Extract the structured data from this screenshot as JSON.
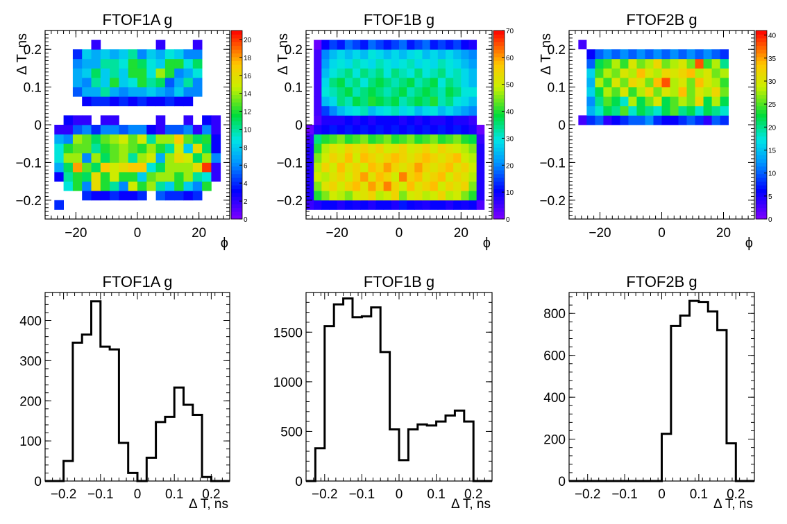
{
  "chart_data": [
    {
      "type": "heatmap",
      "title": "FTOF1A g",
      "xlabel": "ϕ",
      "ylabel": "Δ T, ns",
      "xlim": [
        -30,
        30
      ],
      "ylim": [
        -0.25,
        0.25
      ],
      "xticks": [
        -20,
        0,
        20
      ],
      "xtick_labels": [
        "−20",
        "0",
        "20"
      ],
      "yticks": [
        -0.2,
        -0.1,
        0,
        0.1,
        0.2
      ],
      "ytick_labels": [
        "−0.2",
        "−0.1",
        "0",
        "0.1",
        "0.2"
      ],
      "colorbar": {
        "min": 0,
        "max": 21,
        "ticks": [
          0,
          2,
          4,
          6,
          8,
          10,
          12,
          14,
          16,
          18,
          20
        ]
      },
      "x_bin_edges_start": -27,
      "x_bin_width": 3,
      "nx": 18,
      "y_bin_edges_start": -0.225,
      "y_bin_width": 0.025,
      "ny": 18,
      "z": [
        [
          4,
          0,
          0,
          0,
          0,
          0,
          0,
          0,
          0,
          0,
          0,
          0,
          0,
          0,
          0,
          0,
          0,
          0
        ],
        [
          0,
          0,
          0,
          4,
          3,
          3,
          4,
          3,
          3,
          4,
          0,
          5,
          4,
          4,
          3,
          4,
          0,
          0
        ],
        [
          0,
          9,
          12,
          6,
          16,
          12,
          10,
          6,
          15,
          12,
          14,
          10,
          8,
          12,
          8,
          6,
          12,
          0
        ],
        [
          3,
          10,
          12,
          11,
          16,
          12,
          15,
          12,
          12,
          8,
          13,
          14,
          14,
          12,
          14,
          10,
          9,
          2
        ],
        [
          7,
          11,
          18,
          13,
          11,
          17,
          15,
          16,
          17,
          17,
          9,
          11,
          14,
          14,
          14,
          16,
          20,
          2
        ],
        [
          9,
          14,
          14,
          6,
          14,
          11,
          13,
          14,
          10,
          14,
          15,
          7,
          14,
          16,
          15,
          11,
          14,
          6
        ],
        [
          9,
          12,
          13,
          13,
          10,
          12,
          13,
          14,
          13,
          12,
          14,
          12,
          10,
          15,
          8,
          16,
          11,
          3
        ],
        [
          7,
          6,
          14,
          13,
          11,
          13,
          14,
          15,
          13,
          15,
          10,
          14,
          14,
          17,
          13,
          11,
          12,
          3
        ],
        [
          2,
          2,
          5,
          6,
          4,
          6,
          6,
          5,
          6,
          6,
          3,
          2,
          5,
          5,
          6,
          2,
          6,
          2
        ],
        [
          0,
          3,
          2,
          2,
          0,
          2,
          2,
          0,
          0,
          0,
          0,
          2,
          0,
          0,
          2,
          0,
          3,
          2
        ],
        [
          0,
          0,
          0,
          0,
          0,
          0,
          0,
          0,
          0,
          0,
          0,
          0,
          0,
          0,
          0,
          0,
          0,
          0
        ],
        [
          0,
          0,
          0,
          3,
          4,
          4,
          3,
          4,
          3,
          4,
          3,
          3,
          4,
          3,
          3,
          0,
          0,
          0
        ],
        [
          0,
          0,
          5,
          7,
          7,
          10,
          7,
          6,
          7,
          7,
          8,
          7,
          6,
          8,
          6,
          6,
          0,
          0
        ],
        [
          0,
          0,
          7,
          6,
          10,
          8,
          12,
          8,
          9,
          12,
          10,
          11,
          5,
          7,
          10,
          6,
          0,
          0
        ],
        [
          0,
          0,
          7,
          8,
          11,
          8,
          10,
          8,
          12,
          12,
          9,
          14,
          12,
          6,
          7,
          9,
          0,
          0
        ],
        [
          0,
          0,
          6,
          7,
          7,
          10,
          10,
          9,
          12,
          11,
          9,
          8,
          12,
          12,
          9,
          11,
          0,
          0
        ],
        [
          0,
          0,
          4,
          8,
          7,
          8,
          7,
          8,
          10,
          6,
          8,
          7,
          9,
          8,
          6,
          6,
          0,
          0
        ],
        [
          0,
          0,
          0,
          0,
          2,
          0,
          0,
          0,
          0,
          0,
          0,
          2,
          0,
          0,
          0,
          2,
          0,
          0
        ]
      ]
    },
    {
      "type": "heatmap",
      "title": "FTOF1B g",
      "xlabel": "ϕ",
      "ylabel": "Δ T, ns",
      "xlim": [
        -30,
        30
      ],
      "ylim": [
        -0.25,
        0.25
      ],
      "xticks": [
        -20,
        0,
        20
      ],
      "xtick_labels": [
        "−20",
        "0",
        "20"
      ],
      "yticks": [
        -0.2,
        -0.1,
        0,
        0.1,
        0.2
      ],
      "ytick_labels": [
        "−0.2",
        "−0.1",
        "0",
        "0.1",
        "0.2"
      ],
      "colorbar": {
        "min": 0,
        "max": 70,
        "ticks": [
          0,
          10,
          20,
          30,
          40,
          50,
          60,
          70
        ]
      },
      "x_bin_edges_start": -30,
      "x_bin_width": 2.5,
      "nx": 24,
      "y_bin_edges_start": -0.225,
      "y_bin_width": 0.025,
      "ny": 19,
      "z": [
        [
          6,
          8,
          10,
          10,
          8,
          10,
          9,
          10,
          8,
          10,
          10,
          8,
          12,
          10,
          9,
          8,
          10,
          10,
          8,
          10,
          9,
          10,
          4,
          0
        ],
        [
          8,
          40,
          45,
          50,
          48,
          45,
          50,
          52,
          55,
          48,
          50,
          55,
          45,
          50,
          52,
          48,
          50,
          55,
          48,
          50,
          45,
          40,
          8,
          0
        ],
        [
          8,
          45,
          52,
          55,
          50,
          55,
          58,
          52,
          60,
          55,
          62,
          55,
          50,
          58,
          52,
          55,
          58,
          50,
          55,
          52,
          55,
          45,
          8,
          0
        ],
        [
          8,
          50,
          48,
          52,
          55,
          50,
          55,
          60,
          52,
          58,
          55,
          50,
          62,
          55,
          58,
          52,
          55,
          58,
          50,
          55,
          52,
          48,
          8,
          0
        ],
        [
          8,
          48,
          55,
          50,
          58,
          52,
          55,
          50,
          58,
          55,
          60,
          55,
          52,
          55,
          60,
          55,
          52,
          55,
          58,
          52,
          55,
          50,
          8,
          0
        ],
        [
          8,
          45,
          50,
          55,
          52,
          58,
          50,
          58,
          55,
          52,
          55,
          58,
          55,
          52,
          55,
          58,
          55,
          52,
          55,
          58,
          50,
          48,
          8,
          0
        ],
        [
          8,
          40,
          48,
          52,
          50,
          55,
          52,
          55,
          52,
          55,
          50,
          52,
          55,
          50,
          52,
          55,
          50,
          55,
          52,
          50,
          48,
          45,
          8,
          0
        ],
        [
          6,
          35,
          40,
          42,
          45,
          40,
          42,
          45,
          40,
          42,
          45,
          40,
          42,
          45,
          40,
          42,
          45,
          40,
          42,
          45,
          40,
          38,
          6,
          0
        ],
        [
          2,
          8,
          10,
          12,
          10,
          12,
          10,
          12,
          10,
          12,
          10,
          12,
          10,
          12,
          10,
          12,
          10,
          12,
          10,
          12,
          10,
          8,
          2,
          0
        ],
        [
          0,
          4,
          8,
          8,
          8,
          10,
          8,
          10,
          8,
          10,
          10,
          10,
          8,
          10,
          8,
          10,
          8,
          8,
          10,
          8,
          8,
          6,
          0,
          0
        ],
        [
          0,
          5,
          15,
          20,
          25,
          28,
          30,
          32,
          25,
          28,
          30,
          32,
          28,
          30,
          25,
          28,
          30,
          25,
          28,
          25,
          22,
          20,
          0,
          0
        ],
        [
          0,
          5,
          25,
          28,
          35,
          32,
          38,
          35,
          40,
          38,
          35,
          38,
          32,
          35,
          38,
          35,
          40,
          32,
          35,
          30,
          28,
          25,
          0,
          0
        ],
        [
          0,
          5,
          30,
          32,
          35,
          38,
          32,
          35,
          38,
          35,
          32,
          35,
          38,
          32,
          35,
          38,
          35,
          32,
          38,
          35,
          30,
          30,
          0,
          0
        ],
        [
          0,
          5,
          28,
          35,
          38,
          32,
          35,
          30,
          35,
          38,
          35,
          32,
          35,
          38,
          32,
          35,
          38,
          30,
          35,
          32,
          28,
          25,
          0,
          0
        ],
        [
          0,
          5,
          25,
          30,
          32,
          35,
          30,
          35,
          32,
          35,
          30,
          35,
          32,
          30,
          35,
          30,
          32,
          35,
          30,
          32,
          28,
          25,
          0,
          0
        ],
        [
          0,
          5,
          22,
          28,
          30,
          28,
          32,
          30,
          28,
          32,
          30,
          28,
          30,
          32,
          28,
          30,
          28,
          32,
          30,
          28,
          25,
          22,
          0,
          0
        ],
        [
          0,
          5,
          20,
          25,
          28,
          25,
          28,
          25,
          30,
          28,
          25,
          28,
          25,
          28,
          30,
          25,
          28,
          25,
          28,
          25,
          22,
          20,
          0,
          0
        ],
        [
          0,
          2,
          10,
          15,
          12,
          18,
          15,
          12,
          18,
          15,
          12,
          15,
          18,
          12,
          15,
          18,
          12,
          15,
          12,
          15,
          10,
          8,
          0,
          0
        ],
        [
          0,
          0,
          0,
          0,
          0,
          0,
          0,
          0,
          0,
          0,
          0,
          0,
          0,
          0,
          0,
          0,
          0,
          0,
          0,
          0,
          0,
          0,
          0,
          0
        ]
      ]
    },
    {
      "type": "heatmap",
      "title": "FTOF2B g",
      "xlabel": "ϕ",
      "ylabel": "Δ T, ns",
      "xlim": [
        -30,
        30
      ],
      "ylim": [
        -0.25,
        0.25
      ],
      "xticks": [
        -20,
        0,
        20
      ],
      "xtick_labels": [
        "−20",
        "0",
        "20"
      ],
      "yticks": [
        -0.2,
        -0.1,
        0,
        0.1,
        0.2
      ],
      "ytick_labels": [
        "−0.2",
        "−0.1",
        "0",
        "0.1",
        "0.2"
      ],
      "colorbar": {
        "min": 0,
        "max": 41,
        "ticks": [
          0,
          5,
          10,
          15,
          20,
          25,
          30,
          35,
          40
        ]
      },
      "x_bin_edges_start": -27,
      "x_bin_width": 2.7,
      "nx": 18,
      "y_bin_edges_start": 0,
      "y_bin_width": 0.025,
      "ny": 9,
      "z": [
        [
          3,
          8,
          10,
          4,
          6,
          8,
          10,
          10,
          12,
          8,
          6,
          6,
          8,
          10,
          8,
          4,
          10,
          8
        ],
        [
          0,
          14,
          18,
          22,
          20,
          25,
          18,
          22,
          20,
          18,
          22,
          25,
          20,
          22,
          18,
          22,
          20,
          18
        ],
        [
          0,
          12,
          20,
          25,
          22,
          18,
          28,
          22,
          26,
          30,
          22,
          25,
          28,
          26,
          32,
          22,
          28,
          22
        ],
        [
          0,
          16,
          22,
          28,
          25,
          30,
          24,
          28,
          32,
          26,
          30,
          28,
          34,
          26,
          30,
          28,
          32,
          26
        ],
        [
          0,
          14,
          28,
          24,
          30,
          26,
          32,
          30,
          26,
          34,
          38,
          28,
          30,
          26,
          34,
          30,
          28,
          24
        ],
        [
          0,
          16,
          24,
          28,
          26,
          30,
          28,
          34,
          30,
          28,
          32,
          30,
          32,
          34,
          28,
          30,
          26,
          28
        ],
        [
          0,
          10,
          22,
          24,
          28,
          24,
          30,
          26,
          28,
          32,
          26,
          28,
          30,
          26,
          38,
          24,
          28,
          20
        ],
        [
          0,
          6,
          10,
          12,
          10,
          12,
          10,
          12,
          10,
          12,
          10,
          12,
          10,
          12,
          10,
          12,
          10,
          8
        ],
        [
          0,
          0,
          0,
          0,
          0,
          0,
          0,
          0,
          0,
          0,
          0,
          0,
          0,
          0,
          0,
          0,
          0,
          0
        ]
      ],
      "extra_cells": [
        {
          "ix": 0,
          "iy": 8,
          "value": 3
        }
      ]
    },
    {
      "type": "line",
      "title": "FTOF1A g",
      "xlabel": "Δ T, ns",
      "ylabel": "",
      "xlim": [
        -0.25,
        0.25
      ],
      "ylim": [
        0,
        470
      ],
      "xticks": [
        -0.2,
        -0.1,
        0,
        0.1,
        0.2
      ],
      "xtick_labels": [
        "−0.2",
        "−0.1",
        "0",
        "0.1",
        "0.2"
      ],
      "yticks": [
        0,
        100,
        200,
        300,
        400
      ],
      "ytick_labels": [
        "0",
        "100",
        "200",
        "300",
        "400"
      ],
      "bin_edges_start": -0.25,
      "bin_width": 0.025,
      "values": [
        0,
        0,
        50,
        345,
        365,
        448,
        335,
        328,
        95,
        20,
        0,
        58,
        147,
        160,
        233,
        190,
        165,
        10,
        0,
        0
      ]
    },
    {
      "type": "line",
      "title": "FTOF1B g",
      "xlabel": "Δ T, ns",
      "ylabel": "",
      "xlim": [
        -0.25,
        0.25
      ],
      "ylim": [
        0,
        1900
      ],
      "xticks": [
        -0.2,
        -0.1,
        0,
        0.1,
        0.2
      ],
      "xtick_labels": [
        "−0.2",
        "−0.1",
        "0",
        "0.1",
        "0.2"
      ],
      "yticks": [
        0,
        500,
        1000,
        1500
      ],
      "ytick_labels": [
        "0",
        "500",
        "1000",
        "1500"
      ],
      "bin_edges_start": -0.25,
      "bin_width": 0.025,
      "values": [
        0,
        330,
        1560,
        1780,
        1840,
        1650,
        1660,
        1750,
        1300,
        520,
        210,
        520,
        570,
        560,
        600,
        660,
        710,
        600,
        0,
        0
      ]
    },
    {
      "type": "line",
      "title": "FTOF2B g",
      "xlabel": "Δ T, ns",
      "ylabel": "",
      "xlim": [
        -0.25,
        0.25
      ],
      "ylim": [
        0,
        900
      ],
      "xticks": [
        -0.2,
        -0.1,
        0,
        0.1,
        0.2
      ],
      "xtick_labels": [
        "−0.2",
        "−0.1",
        "0",
        "0.1",
        "0.2"
      ],
      "yticks": [
        0,
        200,
        400,
        600,
        800
      ],
      "ytick_labels": [
        "0",
        "200",
        "400",
        "600",
        "800"
      ],
      "bin_edges_start": -0.25,
      "bin_width": 0.025,
      "values": [
        0,
        0,
        0,
        0,
        0,
        0,
        0,
        0,
        0,
        0,
        225,
        740,
        790,
        860,
        855,
        810,
        720,
        180,
        0,
        0
      ]
    }
  ]
}
